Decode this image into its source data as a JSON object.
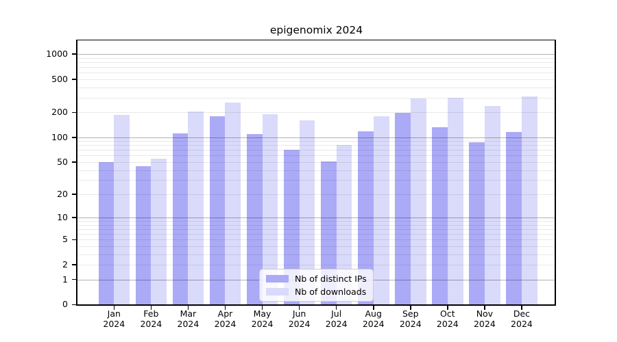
{
  "chart_data": {
    "type": "bar",
    "title": "epigenomix 2024",
    "year": "2024",
    "categories": [
      "Jan",
      "Feb",
      "Mar",
      "Apr",
      "May",
      "Jun",
      "Jul",
      "Aug",
      "Sep",
      "Oct",
      "Nov",
      "Dec"
    ],
    "series": [
      {
        "name": "Nb of distinct IPs",
        "color": "#abaaf6",
        "values": [
          50,
          44,
          112,
          180,
          108,
          70,
          51,
          117,
          195,
          132,
          86,
          115
        ]
      },
      {
        "name": "Nb of downloads",
        "color": "#dadafa",
        "values": [
          185,
          55,
          205,
          260,
          190,
          160,
          80,
          180,
          295,
          300,
          237,
          310
        ]
      }
    ],
    "y_scale": "log1p",
    "y_axis_ticks": [
      0,
      1,
      2,
      5,
      10,
      20,
      50,
      100,
      200,
      500,
      1000
    ],
    "y_major_gridlines": [
      1,
      10,
      100,
      1000
    ],
    "y_minor_gridlines": [
      2,
      3,
      4,
      5,
      6,
      7,
      8,
      9,
      20,
      30,
      40,
      50,
      60,
      70,
      80,
      90,
      200,
      300,
      400,
      500,
      600,
      700,
      800,
      900
    ],
    "grid": "both",
    "legend_position": "inside-bottom-center",
    "colors": {
      "axis": "#000000",
      "major_grid": "#b3b3b3",
      "minor_grid": "#e9e9e9",
      "background": "#ffffff"
    }
  }
}
